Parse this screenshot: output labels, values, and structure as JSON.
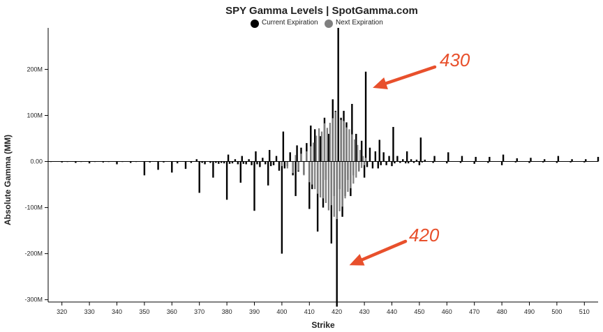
{
  "chart_data": {
    "type": "bar",
    "title": "SPY Gamma Levels | SpotGamma.com",
    "xlabel": "Strike",
    "ylabel": "Absolute Gamma (MM)",
    "xlim": [
      315,
      515
    ],
    "ylim": [
      -305,
      290
    ],
    "y_ticks": [
      200,
      100,
      0,
      -100,
      -200,
      -300
    ],
    "y_tick_labels": [
      "200M",
      "100M",
      "0.00",
      "-100M",
      "-200M",
      "-300M"
    ],
    "x_ticks": [
      320,
      330,
      340,
      350,
      360,
      370,
      380,
      390,
      400,
      410,
      420,
      430,
      440,
      450,
      460,
      470,
      480,
      490,
      500,
      510
    ],
    "grid": false,
    "legend_position": "top-center",
    "series": [
      {
        "name": "Current Expiration",
        "color": "#000000",
        "points": [
          [
            316,
            -1
          ],
          [
            320,
            -2
          ],
          [
            322,
            -1
          ],
          [
            325,
            -3
          ],
          [
            327,
            -1
          ],
          [
            330,
            -4
          ],
          [
            332,
            -1
          ],
          [
            335,
            -2
          ],
          [
            337,
            -1
          ],
          [
            340,
            -6
          ],
          [
            342,
            -1
          ],
          [
            345,
            -3
          ],
          [
            347,
            -1
          ],
          [
            350,
            -30
          ],
          [
            352,
            -2
          ],
          [
            355,
            -18
          ],
          [
            357,
            -2
          ],
          [
            360,
            -24
          ],
          [
            362,
            -4
          ],
          [
            365,
            -16
          ],
          [
            367,
            -3
          ],
          [
            369,
            5
          ],
          [
            370,
            -68
          ],
          [
            371,
            -3
          ],
          [
            372,
            -6
          ],
          [
            374,
            -3
          ],
          [
            375,
            -35
          ],
          [
            376,
            -3
          ],
          [
            377,
            -5
          ],
          [
            378,
            -3
          ],
          [
            379,
            -4
          ],
          [
            380,
            -83
          ],
          [
            380.5,
            15
          ],
          [
            381,
            -5
          ],
          [
            382,
            -4
          ],
          [
            383,
            5
          ],
          [
            384,
            -6
          ],
          [
            385,
            -46
          ],
          [
            385.5,
            12
          ],
          [
            386,
            -5
          ],
          [
            387,
            -6
          ],
          [
            388,
            5
          ],
          [
            389,
            -8
          ],
          [
            390,
            -107
          ],
          [
            390.5,
            22
          ],
          [
            391,
            -6
          ],
          [
            392,
            -12
          ],
          [
            393,
            8
          ],
          [
            394,
            -6
          ],
          [
            395,
            -52
          ],
          [
            395.5,
            25
          ],
          [
            396,
            -10
          ],
          [
            397,
            -8
          ],
          [
            398,
            12
          ],
          [
            399,
            -20
          ],
          [
            400,
            -200
          ],
          [
            400.5,
            65
          ],
          [
            401,
            -15
          ],
          [
            402,
            -10
          ],
          [
            403,
            20
          ],
          [
            404,
            -30
          ],
          [
            405,
            -75
          ],
          [
            405.5,
            35
          ],
          [
            406,
            -22
          ],
          [
            407,
            30
          ],
          [
            408,
            -28
          ],
          [
            409,
            40
          ],
          [
            410,
            -103
          ],
          [
            410.5,
            78
          ],
          [
            411,
            -60
          ],
          [
            412,
            70
          ],
          [
            413,
            -152
          ],
          [
            414,
            55
          ],
          [
            415,
            -100
          ],
          [
            415.5,
            95
          ],
          [
            416,
            -40
          ],
          [
            417,
            60
          ],
          [
            418,
            -178
          ],
          [
            418.5,
            135
          ],
          [
            419,
            -75
          ],
          [
            419.5,
            110
          ],
          [
            420,
            -315
          ],
          [
            420.5,
            290
          ],
          [
            421,
            -60
          ],
          [
            421.5,
            95
          ],
          [
            422,
            -120
          ],
          [
            422.5,
            110
          ],
          [
            423,
            -75
          ],
          [
            423.5,
            85
          ],
          [
            424,
            -40
          ],
          [
            425,
            -75
          ],
          [
            425.5,
            125
          ],
          [
            426,
            -30
          ],
          [
            427,
            60
          ],
          [
            428,
            -20
          ],
          [
            429,
            45
          ],
          [
            430,
            -35
          ],
          [
            430.5,
            195
          ],
          [
            431,
            -12
          ],
          [
            432,
            30
          ],
          [
            433,
            -15
          ],
          [
            434,
            22
          ],
          [
            435,
            -15
          ],
          [
            435.5,
            47
          ],
          [
            436,
            -8
          ],
          [
            437,
            20
          ],
          [
            438,
            -8
          ],
          [
            439,
            12
          ],
          [
            440,
            -10
          ],
          [
            440.5,
            75
          ],
          [
            441,
            -4
          ],
          [
            442,
            12
          ],
          [
            443,
            -3
          ],
          [
            444,
            5
          ],
          [
            445,
            -4
          ],
          [
            445.5,
            22
          ],
          [
            446,
            -4
          ],
          [
            447,
            5
          ],
          [
            448,
            -3
          ],
          [
            449,
            4
          ],
          [
            450,
            -8
          ],
          [
            450.5,
            52
          ],
          [
            451,
            -2
          ],
          [
            452,
            4
          ],
          [
            455,
            -3
          ],
          [
            455.5,
            12
          ],
          [
            460,
            -4
          ],
          [
            460.5,
            20
          ],
          [
            465,
            -3
          ],
          [
            465.5,
            12
          ],
          [
            470,
            -5
          ],
          [
            470.5,
            10
          ],
          [
            475,
            -3
          ],
          [
            475.5,
            10
          ],
          [
            480,
            -8
          ],
          [
            480.5,
            15
          ],
          [
            485,
            -2
          ],
          [
            485.5,
            7
          ],
          [
            490,
            -3
          ],
          [
            490.5,
            8
          ],
          [
            495,
            -2
          ],
          [
            495.5,
            5
          ],
          [
            500,
            -3
          ],
          [
            500.5,
            12
          ],
          [
            505,
            -2
          ],
          [
            505.5,
            5
          ],
          [
            510,
            -2
          ],
          [
            510.5,
            5
          ],
          [
            515,
            10
          ]
        ]
      },
      {
        "name": "Next Expiration",
        "color": "#7f7f7f",
        "points": [
          [
            400,
            -10
          ],
          [
            402,
            -15
          ],
          [
            404,
            -25
          ],
          [
            405,
            14
          ],
          [
            406,
            -20
          ],
          [
            407,
            17
          ],
          [
            408,
            -30
          ],
          [
            409,
            22
          ],
          [
            410,
            -45
          ],
          [
            410.5,
            33
          ],
          [
            411,
            -50
          ],
          [
            411.5,
            41
          ],
          [
            412,
            -60
          ],
          [
            412.5,
            56
          ],
          [
            413,
            -70
          ],
          [
            413.5,
            72
          ],
          [
            414,
            -78
          ],
          [
            414.5,
            65
          ],
          [
            415,
            -80
          ],
          [
            415.5,
            83
          ],
          [
            416,
            -90
          ],
          [
            416.5,
            73
          ],
          [
            417,
            -106
          ],
          [
            417.5,
            84
          ],
          [
            418,
            -95
          ],
          [
            418.5,
            94
          ],
          [
            419,
            -120
          ],
          [
            419.5,
            108
          ],
          [
            420,
            -125
          ],
          [
            421,
            -108
          ],
          [
            421.5,
            90
          ],
          [
            422,
            -98
          ],
          [
            422.5,
            88
          ],
          [
            423,
            -80
          ],
          [
            423.5,
            74
          ],
          [
            424,
            -66
          ],
          [
            424.5,
            70
          ],
          [
            425,
            -58
          ],
          [
            425.5,
            59
          ],
          [
            426,
            -48
          ],
          [
            426.5,
            48
          ],
          [
            427,
            -35
          ],
          [
            427.5,
            36
          ],
          [
            428,
            -22
          ],
          [
            428.5,
            25
          ],
          [
            429,
            -14
          ],
          [
            429.5,
            12
          ],
          [
            430,
            -8
          ],
          [
            430.5,
            8
          ]
        ]
      }
    ],
    "annotations": [
      {
        "text": "430",
        "color": "#E8502C",
        "target_x": 430.5,
        "target_y": 160
      },
      {
        "text": "420",
        "color": "#E8502C",
        "target_x": 422,
        "target_y": -225
      }
    ]
  }
}
